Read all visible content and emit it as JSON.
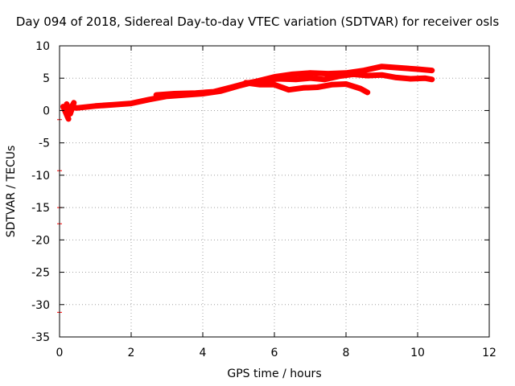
{
  "chart_data": {
    "type": "scatter",
    "title": "Day 094 of 2018, Sidereal Day-to-day VTEC variation (SDTVAR) for receiver osls",
    "xlabel": "GPS time / hours",
    "ylabel": "SDTVAR / TECUs",
    "xlim": [
      0,
      12
    ],
    "ylim": [
      -35,
      10
    ],
    "xticks": [
      0,
      2,
      4,
      6,
      8,
      10,
      12
    ],
    "yticks": [
      10,
      5,
      0,
      -5,
      -10,
      -15,
      -20,
      -25,
      -30,
      -35
    ],
    "grid": true,
    "series_color": "#ff0000",
    "series": [
      {
        "values": [
          [
            0.2,
            0.5
          ],
          [
            0.5,
            0.4
          ],
          [
            1.0,
            0.7
          ],
          [
            1.5,
            0.9
          ],
          [
            2.0,
            1.1
          ],
          [
            2.5,
            1.7
          ],
          [
            3.0,
            2.2
          ],
          [
            3.5,
            2.4
          ],
          [
            4.0,
            2.6
          ],
          [
            4.5,
            3.0
          ],
          [
            5.0,
            3.8
          ],
          [
            5.5,
            4.5
          ],
          [
            6.0,
            5.2
          ],
          [
            6.5,
            5.6
          ],
          [
            7.0,
            5.8
          ],
          [
            7.5,
            5.7
          ],
          [
            8.0,
            5.8
          ],
          [
            8.5,
            6.2
          ],
          [
            9.0,
            6.8
          ],
          [
            9.5,
            6.6
          ],
          [
            10.0,
            6.4
          ],
          [
            10.4,
            6.2
          ]
        ]
      },
      {
        "values": [
          [
            2.7,
            2.4
          ],
          [
            3.2,
            2.6
          ],
          [
            3.8,
            2.7
          ],
          [
            4.3,
            2.9
          ],
          [
            4.8,
            3.6
          ],
          [
            5.2,
            4.2
          ],
          [
            5.6,
            4.6
          ],
          [
            6.1,
            4.9
          ],
          [
            6.6,
            4.8
          ],
          [
            7.0,
            5.0
          ],
          [
            7.4,
            4.8
          ],
          [
            7.8,
            5.3
          ],
          [
            8.2,
            5.6
          ],
          [
            8.6,
            5.4
          ],
          [
            9.0,
            5.5
          ],
          [
            9.4,
            5.1
          ],
          [
            9.8,
            4.9
          ],
          [
            10.2,
            5.0
          ],
          [
            10.4,
            4.8
          ]
        ]
      },
      {
        "values": [
          [
            5.2,
            4.3
          ],
          [
            5.6,
            4.0
          ],
          [
            6.0,
            4.0
          ],
          [
            6.4,
            3.2
          ],
          [
            6.8,
            3.5
          ],
          [
            7.2,
            3.6
          ],
          [
            7.6,
            4.0
          ],
          [
            8.0,
            4.1
          ],
          [
            8.4,
            3.4
          ],
          [
            8.6,
            2.8
          ]
        ]
      },
      {
        "values": [
          [
            0.2,
            1.0
          ],
          [
            0.3,
            -0.5
          ],
          [
            0.4,
            1.2
          ],
          [
            0.3,
            0.2
          ],
          [
            0.1,
            0.6
          ],
          [
            0.25,
            -1.3
          ]
        ]
      },
      {
        "values": [
          [
            0.0,
            -1.4
          ],
          [
            0.0,
            -9.3
          ],
          [
            0.0,
            -15.0
          ],
          [
            0.0,
            -17.5
          ],
          [
            0.0,
            -31.2
          ]
        ]
      }
    ]
  }
}
